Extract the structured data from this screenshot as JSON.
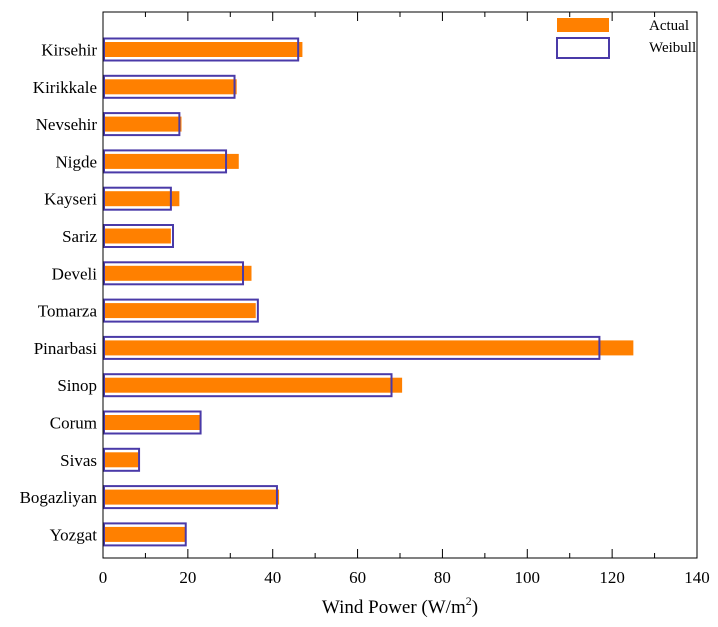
{
  "chart_data": {
    "type": "bar",
    "orientation": "horizontal",
    "title": "",
    "xlabel": "Wind Power (W/m",
    "xlabel_superscript": "2",
    "xlabel_suffix": ")",
    "ylabel": "",
    "xlim": [
      0,
      140
    ],
    "xticks": [
      0,
      20,
      40,
      60,
      80,
      100,
      120,
      140
    ],
    "grid": false,
    "legend_position": "top-right",
    "categories": [
      "Kirsehir",
      "Kirikkale",
      "Nevsehir",
      "Nigde",
      "Kayseri",
      "Sariz",
      "Develi",
      "Tomarza",
      "Pinarbasi",
      "Sinop",
      "Corum",
      "Sivas",
      "Bogazliyan",
      "Yozgat"
    ],
    "series": [
      {
        "name": "Actual",
        "style": "filled",
        "color": "#ff8000",
        "values": [
          47,
          31.5,
          18.5,
          32,
          18,
          16,
          35,
          36,
          125,
          70.5,
          23,
          8.5,
          41.5,
          19.5
        ]
      },
      {
        "name": "Weibull",
        "style": "outline",
        "color": "#4a3aa8",
        "values": [
          46,
          31,
          18,
          29,
          16,
          16.5,
          33,
          36.5,
          117,
          68,
          23,
          8.5,
          41,
          19.5
        ]
      }
    ]
  }
}
